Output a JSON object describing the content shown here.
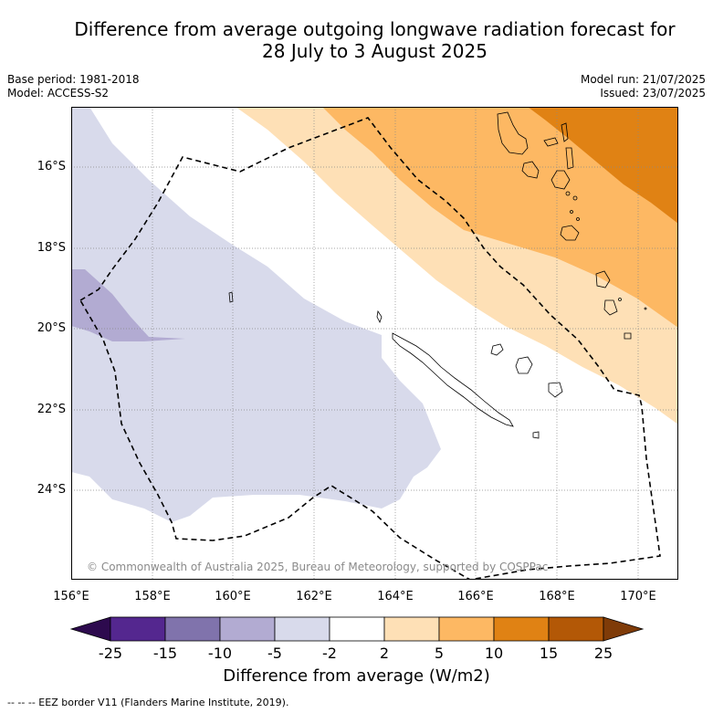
{
  "title_line1": "Difference from average outgoing longwave radiation forecast for",
  "title_line2": "28 July to 3 August 2025",
  "base_period": "Base period: 1981-2018",
  "model": "Model: ACCESS-S2",
  "model_run": "Model run: 21/07/2025",
  "issued": "Issued: 23/07/2025",
  "copyright": "© Commonwealth of Australia 2025, Bureau of Meteorology, supported by COSPPac",
  "lat_labels": [
    "16°S",
    "18°S",
    "20°S",
    "22°S",
    "24°S"
  ],
  "lon_labels": [
    "156°E",
    "158°E",
    "160°E",
    "162°E",
    "164°E",
    "166°E",
    "168°E",
    "170°E"
  ],
  "colorbar": {
    "ticks": [
      "-25",
      "-15",
      "-10",
      "-5",
      "-2",
      "2",
      "5",
      "10",
      "15",
      "25"
    ],
    "colors": [
      "#2d0a4e",
      "#54278f",
      "#8073ac",
      "#b2abd2",
      "#d8daeb",
      "#ffffff",
      "#fee0b6",
      "#fdb863",
      "#e08214",
      "#b35806",
      "#7f3b08"
    ],
    "title": "Difference from average (W/m2)"
  },
  "footer": "--  --  -- EEZ border V11 (Flanders Marine Institute, 2019)."
}
